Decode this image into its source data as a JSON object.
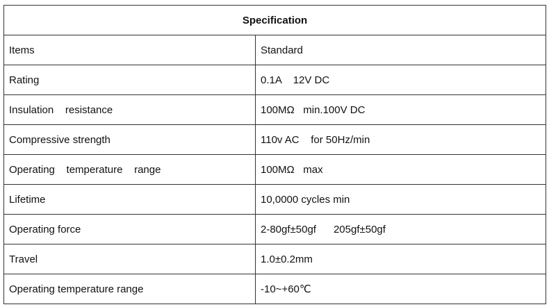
{
  "table": {
    "title": "Specification",
    "rows": [
      [
        "Items",
        "Standard"
      ],
      [
        "Rating",
        "0.1A    12V DC"
      ],
      [
        "Insulation    resistance",
        "100MΩ   min.100V DC"
      ],
      [
        "Compressive strength",
        "110v AC    for 50Hz/min"
      ],
      [
        "Operating    temperature    range",
        "100MΩ   max"
      ],
      [
        "Lifetime",
        "10,0000 cycles min"
      ],
      [
        "Operating force",
        "2-80gf±50gf      205gf±50gf"
      ],
      [
        "Travel",
        "1.0±0.2mm"
      ],
      [
        "Operating temperature range",
        "-10~+60℃"
      ]
    ]
  }
}
